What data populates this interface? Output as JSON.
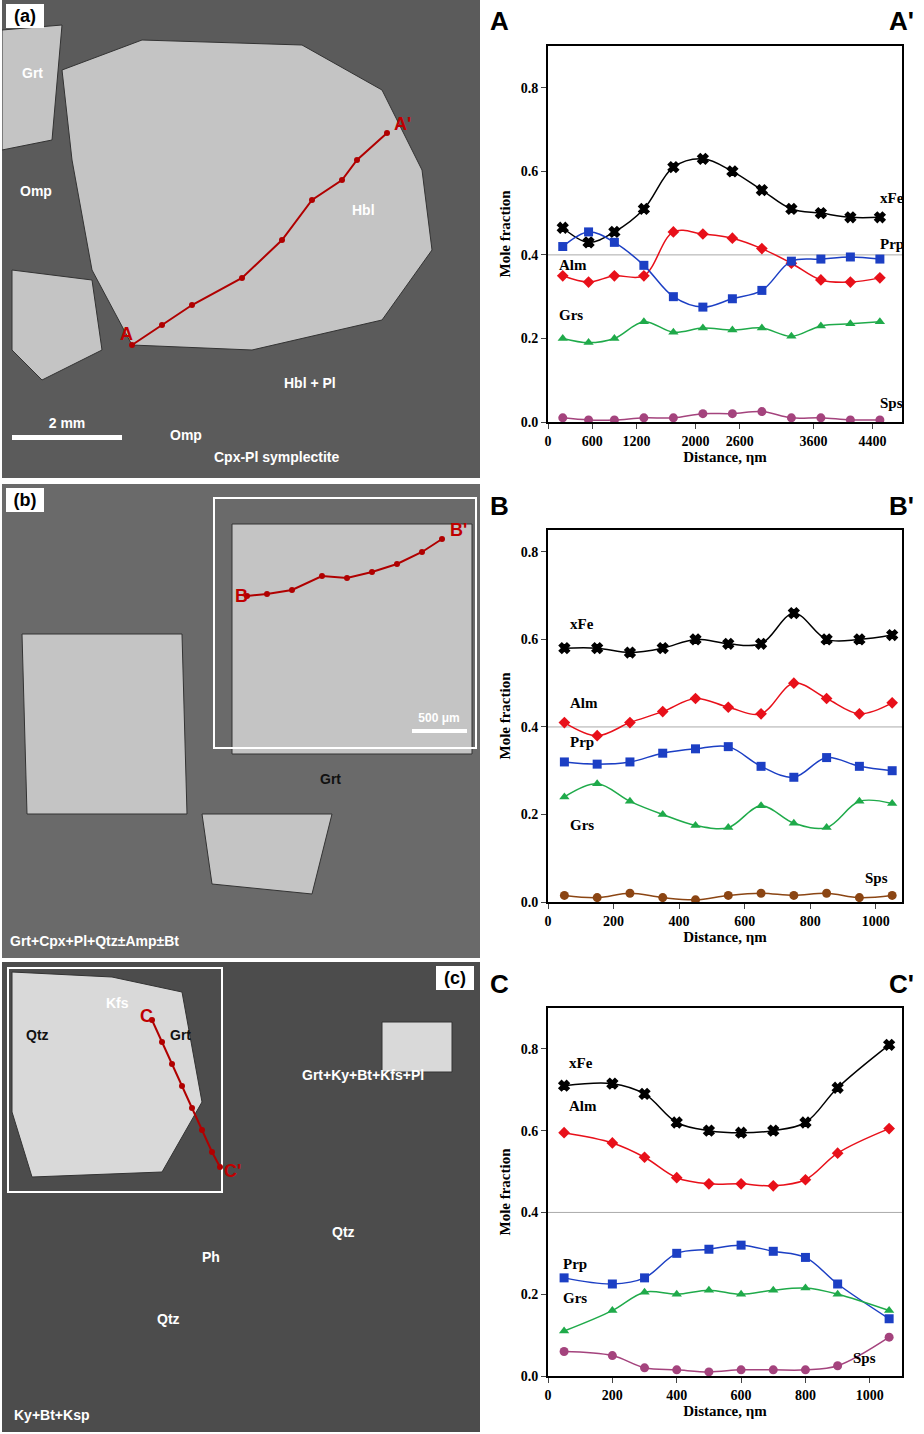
{
  "chart_data": [
    {
      "type": "line",
      "start_label": "A",
      "end_label": "A'",
      "x_label": "Distance, ηm",
      "y_label": "Mole fraction",
      "x": [
        200,
        550,
        900,
        1300,
        1700,
        2100,
        2500,
        2900,
        3300,
        3700,
        4100,
        4500
      ],
      "xlim": [
        0,
        4800
      ],
      "xticks": [
        0,
        600,
        1200,
        2000,
        2600,
        3600,
        4400
      ],
      "ylim": [
        0,
        0.9
      ],
      "yticks": [
        {
          "value": 0,
          "label": "0.0"
        },
        0.2,
        0.4,
        0.6,
        0.8
      ],
      "grid": false,
      "hline": 0.4,
      "series": [
        {
          "name": "xFe",
          "color": "#000000",
          "marker": "x",
          "values": [
            0.465,
            0.43,
            0.455,
            0.51,
            0.61,
            0.63,
            0.6,
            0.555,
            0.51,
            0.5,
            0.49,
            0.49
          ]
        },
        {
          "name": "Alm",
          "color": "#e8101a",
          "marker": "diamond",
          "values": [
            0.35,
            0.335,
            0.35,
            0.35,
            0.455,
            0.45,
            0.44,
            0.415,
            0.38,
            0.34,
            0.335,
            0.345
          ]
        },
        {
          "name": "Prp",
          "color": "#1c3fc4",
          "marker": "square",
          "values": [
            0.42,
            0.455,
            0.43,
            0.375,
            0.3,
            0.275,
            0.295,
            0.315,
            0.385,
            0.39,
            0.395,
            0.39
          ]
        },
        {
          "name": "Grs",
          "color": "#1faa4a",
          "marker": "triangle-up",
          "values": [
            0.2,
            0.19,
            0.2,
            0.24,
            0.215,
            0.225,
            0.22,
            0.225,
            0.205,
            0.23,
            0.235,
            0.24
          ]
        },
        {
          "name": "Sps",
          "color": "#a4437d",
          "marker": "circle",
          "values": [
            0.01,
            0.005,
            0.005,
            0.01,
            0.01,
            0.02,
            0.02,
            0.025,
            0.01,
            0.01,
            0.005,
            0.005
          ]
        }
      ]
    },
    {
      "type": "line",
      "start_label": "B",
      "end_label": "B'",
      "x_label": "Distance, ηm",
      "y_label": "Mole fraction",
      "x": [
        50,
        150,
        250,
        350,
        450,
        550,
        650,
        750,
        850,
        950,
        1050
      ],
      "xlim": [
        0,
        1080
      ],
      "xticks": [
        0,
        200,
        400,
        600,
        800,
        1000
      ],
      "ylim": [
        0,
        0.85
      ],
      "yticks": [
        {
          "value": 0,
          "label": "0.0"
        },
        0.2,
        0.4,
        0.6,
        0.8
      ],
      "grid": false,
      "hline": 0.4,
      "series": [
        {
          "name": "xFe",
          "color": "#000000",
          "marker": "x",
          "values": [
            0.58,
            0.58,
            0.57,
            0.58,
            0.6,
            0.59,
            0.59,
            0.66,
            0.6,
            0.6,
            0.61
          ]
        },
        {
          "name": "Alm",
          "color": "#e8101a",
          "marker": "diamond",
          "values": [
            0.41,
            0.38,
            0.41,
            0.435,
            0.465,
            0.445,
            0.43,
            0.5,
            0.465,
            0.43,
            0.455
          ]
        },
        {
          "name": "Prp",
          "color": "#1c3fc4",
          "marker": "square",
          "values": [
            0.32,
            0.315,
            0.32,
            0.34,
            0.35,
            0.355,
            0.31,
            0.285,
            0.33,
            0.31,
            0.3
          ]
        },
        {
          "name": "Grs",
          "color": "#1faa4a",
          "marker": "triangle-up",
          "values": [
            0.24,
            0.27,
            0.23,
            0.2,
            0.175,
            0.17,
            0.22,
            0.18,
            0.17,
            0.23,
            0.225
          ]
        },
        {
          "name": "Sps",
          "color": "#8b4513",
          "marker": "circle",
          "values": [
            0.015,
            0.01,
            0.02,
            0.01,
            0.005,
            0.015,
            0.02,
            0.015,
            0.02,
            0.01,
            0.015
          ]
        }
      ]
    },
    {
      "type": "line",
      "start_label": "C",
      "end_label": "C'",
      "x_label": "Distance, ηm",
      "y_label": "Mole fraction",
      "x": [
        50,
        200,
        300,
        400,
        500,
        600,
        700,
        800,
        900,
        1060
      ],
      "xlim": [
        0,
        1100
      ],
      "xticks": [
        0,
        200,
        400,
        600,
        800,
        1000
      ],
      "ylim": [
        0,
        0.9
      ],
      "yticks": [
        {
          "value": 0,
          "label": "0.0"
        },
        0.2,
        0.4,
        0.6,
        0.8
      ],
      "grid": false,
      "hline": 0.4,
      "series": [
        {
          "name": "xFe",
          "color": "#000000",
          "marker": "x",
          "values": [
            0.71,
            0.715,
            0.69,
            0.62,
            0.6,
            0.595,
            0.6,
            0.62,
            0.705,
            0.81
          ]
        },
        {
          "name": "Alm",
          "color": "#e8101a",
          "marker": "diamond",
          "values": [
            0.595,
            0.57,
            0.535,
            0.485,
            0.47,
            0.47,
            0.465,
            0.48,
            0.545,
            0.605
          ]
        },
        {
          "name": "Prp",
          "color": "#1c3fc4",
          "marker": "square",
          "values": [
            0.24,
            0.225,
            0.24,
            0.3,
            0.31,
            0.32,
            0.305,
            0.29,
            0.225,
            0.14
          ]
        },
        {
          "name": "Grs",
          "color": "#1faa4a",
          "marker": "triangle-up",
          "values": [
            0.11,
            0.16,
            0.205,
            0.2,
            0.21,
            0.2,
            0.21,
            0.215,
            0.2,
            0.16
          ]
        },
        {
          "name": "Sps",
          "color": "#a4437d",
          "marker": "circle",
          "values": [
            0.06,
            0.05,
            0.02,
            0.015,
            0.01,
            0.015,
            0.015,
            0.015,
            0.025,
            0.095
          ]
        }
      ]
    }
  ],
  "panels": [
    {
      "letter": "(a)",
      "labels": [
        "Grt",
        "Omp",
        "Hbl",
        "A",
        "A'",
        "Hbl + Pl",
        "Omp",
        "Cpx-Pl symplectite"
      ],
      "scale_bar": "2 mm"
    },
    {
      "letter": "(b)",
      "labels": [
        "Grt",
        "B",
        "B'",
        "Grt+Cpx+Pl+Qtz±Amp±Bt"
      ],
      "scale_bar": "500 μm"
    },
    {
      "letter": "(c)",
      "labels": [
        "Qtz",
        "Kfs",
        "Grt",
        "C",
        "C'",
        "Ph",
        "Qtz",
        "Grt+Ky+Bt+Kfs+Pl",
        "Qtz",
        "Ky+Bt+Ksp"
      ]
    }
  ]
}
